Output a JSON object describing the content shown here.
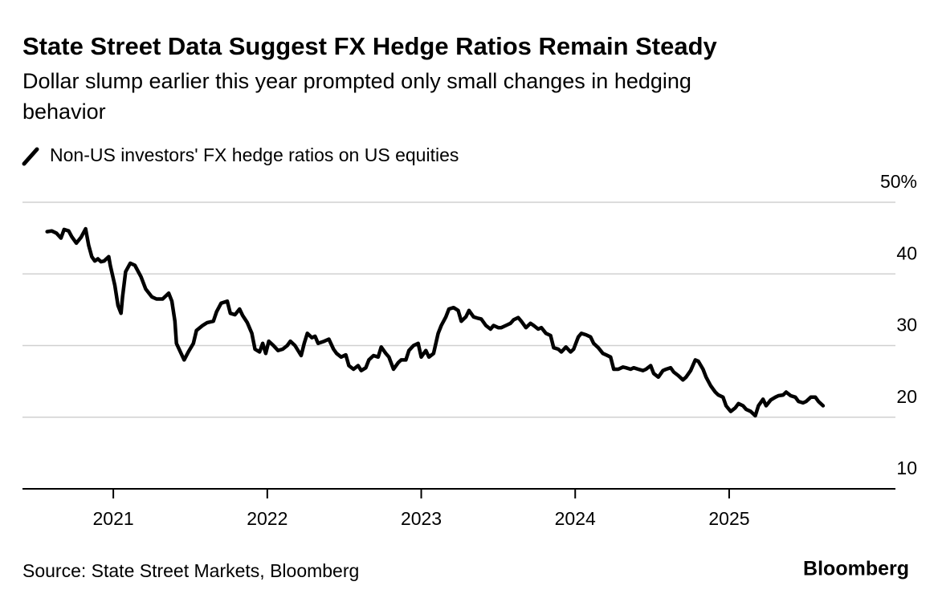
{
  "chart_data": {
    "type": "line",
    "title": "State Street Data Suggest FX Hedge Ratios Remain Steady",
    "subtitle": "Dollar slump earlier this year prompted only small changes in hedging behavior",
    "source": "Source: State Street Markets, Bloomberg",
    "brand": "Bloomberg",
    "x": [
      2020.57,
      2020.6,
      2020.63,
      2020.66,
      2020.68,
      2020.71,
      2020.73,
      2020.76,
      2020.79,
      2020.82,
      2020.84,
      2020.86,
      2020.88,
      2020.9,
      2020.92,
      2020.94,
      2020.97,
      2020.98,
      2021.01,
      2021.03,
      2021.05,
      2021.06,
      2021.08,
      2021.11,
      2021.14,
      2021.18,
      2021.21,
      2021.25,
      2021.28,
      2021.32,
      2021.36,
      2021.38,
      2021.4,
      2021.41,
      2021.44,
      2021.46,
      2021.49,
      2021.52,
      2021.54,
      2021.58,
      2021.61,
      2021.65,
      2021.67,
      2021.7,
      2021.74,
      2021.76,
      2021.79,
      2021.82,
      2021.84,
      2021.87,
      2021.9,
      2021.92,
      2021.95,
      2021.97,
      2021.99,
      2022.01,
      2022.04,
      2022.07,
      2022.1,
      2022.13,
      2022.15,
      2022.18,
      2022.22,
      2022.24,
      2022.26,
      2022.29,
      2022.31,
      2022.33,
      2022.37,
      2022.4,
      2022.43,
      2022.45,
      2022.48,
      2022.51,
      2022.53,
      2022.56,
      2022.59,
      2022.61,
      2022.64,
      2022.66,
      2022.69,
      2022.72,
      2022.74,
      2022.77,
      2022.79,
      2022.82,
      2022.85,
      2022.87,
      2022.9,
      2022.92,
      2022.95,
      2022.98,
      2023.0,
      2023.03,
      2023.05,
      2023.08,
      2023.11,
      2023.13,
      2023.16,
      2023.18,
      2023.21,
      2023.24,
      2023.26,
      2023.29,
      2023.31,
      2023.34,
      2023.37,
      2023.39,
      2023.42,
      2023.45,
      2023.47,
      2023.5,
      2023.52,
      2023.55,
      2023.58,
      2023.6,
      2023.63,
      2023.65,
      2023.68,
      2023.71,
      2023.73,
      2023.76,
      2023.78,
      2023.81,
      2023.84,
      2023.86,
      2023.89,
      2023.91,
      2023.94,
      2023.97,
      2023.99,
      2024.02,
      2024.04,
      2024.07,
      2024.1,
      2024.12,
      2024.15,
      2024.18,
      2024.2,
      2024.23,
      2024.25,
      2024.28,
      2024.31,
      2024.33,
      2024.36,
      2024.38,
      2024.41,
      2024.44,
      2024.46,
      2024.49,
      2024.51,
      2024.54,
      2024.57,
      2024.59,
      2024.62,
      2024.64,
      2024.67,
      2024.7,
      2024.72,
      2024.75,
      2024.78,
      2024.8,
      2024.83,
      2024.85,
      2024.88,
      2024.91,
      2024.93,
      2024.96,
      2024.98,
      2025.01,
      2025.04,
      2025.06,
      2025.09,
      2025.11,
      2025.14,
      2025.17,
      2025.19,
      2025.22,
      2025.24,
      2025.27,
      2025.3,
      2025.32,
      2025.35,
      2025.37,
      2025.4,
      2025.43,
      2025.45,
      2025.48,
      2025.5,
      2025.53,
      2025.56,
      2025.58,
      2025.61
    ],
    "series": [
      {
        "name": "Non-US investors' FX hedge ratios on US equities",
        "color": "#000000",
        "values": [
          45.9,
          46.0,
          45.7,
          45.0,
          46.2,
          46.0,
          45.2,
          44.3,
          45.1,
          46.3,
          44.0,
          42.4,
          41.8,
          42.1,
          41.7,
          41.8,
          42.4,
          41.2,
          38.4,
          35.6,
          34.5,
          36.8,
          40.3,
          41.5,
          41.2,
          39.6,
          37.9,
          36.8,
          36.5,
          36.5,
          37.3,
          36.2,
          33.4,
          30.3,
          28.9,
          28.0,
          29.2,
          30.3,
          32.1,
          32.8,
          33.2,
          33.4,
          34.7,
          35.9,
          36.2,
          34.5,
          34.3,
          35.1,
          34.2,
          33.2,
          31.7,
          29.5,
          29.1,
          30.3,
          28.9,
          30.6,
          30.0,
          29.3,
          29.5,
          30.0,
          30.6,
          30.0,
          28.6,
          30.3,
          31.7,
          31.1,
          31.3,
          30.3,
          30.6,
          30.9,
          29.5,
          28.9,
          28.4,
          28.7,
          27.2,
          26.7,
          27.2,
          26.5,
          26.9,
          28.0,
          28.6,
          28.4,
          29.8,
          28.9,
          28.4,
          26.7,
          27.6,
          28.0,
          28.0,
          29.3,
          30.0,
          30.3,
          28.4,
          29.3,
          28.4,
          28.9,
          31.7,
          32.8,
          34.0,
          35.1,
          35.3,
          34.9,
          33.4,
          34.0,
          34.9,
          34.0,
          33.8,
          33.7,
          32.8,
          32.3,
          32.8,
          32.5,
          32.5,
          32.8,
          33.1,
          33.6,
          33.9,
          33.4,
          32.5,
          33.1,
          32.8,
          32.3,
          32.5,
          31.7,
          31.4,
          29.7,
          29.5,
          29.1,
          29.8,
          29.1,
          29.5,
          31.2,
          31.7,
          31.5,
          31.2,
          30.3,
          29.7,
          28.9,
          28.7,
          28.4,
          26.7,
          26.7,
          27.0,
          26.9,
          26.7,
          26.9,
          26.7,
          26.5,
          26.7,
          27.2,
          26.1,
          25.6,
          26.5,
          26.7,
          26.9,
          26.3,
          25.8,
          25.2,
          25.6,
          26.5,
          28.0,
          27.8,
          26.7,
          25.6,
          24.4,
          23.5,
          23.1,
          22.8,
          21.6,
          20.8,
          21.3,
          21.9,
          21.6,
          21.1,
          20.8,
          20.2,
          21.6,
          22.5,
          21.6,
          22.4,
          22.8,
          23.0,
          23.1,
          23.5,
          23.0,
          22.8,
          22.2,
          22.0,
          22.2,
          22.8,
          22.8,
          22.2,
          21.6
        ]
      }
    ],
    "xlim": [
      2020.41,
      2026.08
    ],
    "xticks": [
      2021,
      2022,
      2023,
      2024,
      2025
    ],
    "ylim": [
      10,
      50
    ],
    "yticks": [
      {
        "value": 50,
        "label": "50%"
      },
      40,
      30,
      20,
      10
    ],
    "grid": true
  }
}
